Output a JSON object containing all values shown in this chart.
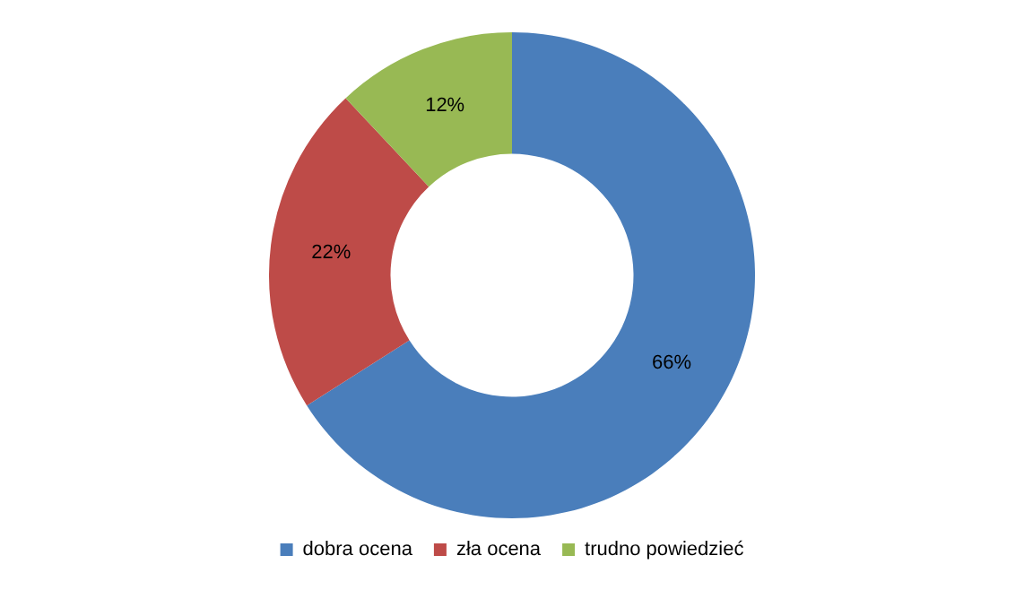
{
  "chart_data": {
    "type": "donut",
    "categories": [
      "dobra ocena",
      "zła ocena",
      "trudno powiedzieć"
    ],
    "values": [
      66,
      22,
      12
    ],
    "colors": [
      "#4a7ebb",
      "#be4b48",
      "#98b954"
    ],
    "value_labels": [
      "66%",
      "22%",
      "12%"
    ],
    "legend": "bottom"
  }
}
